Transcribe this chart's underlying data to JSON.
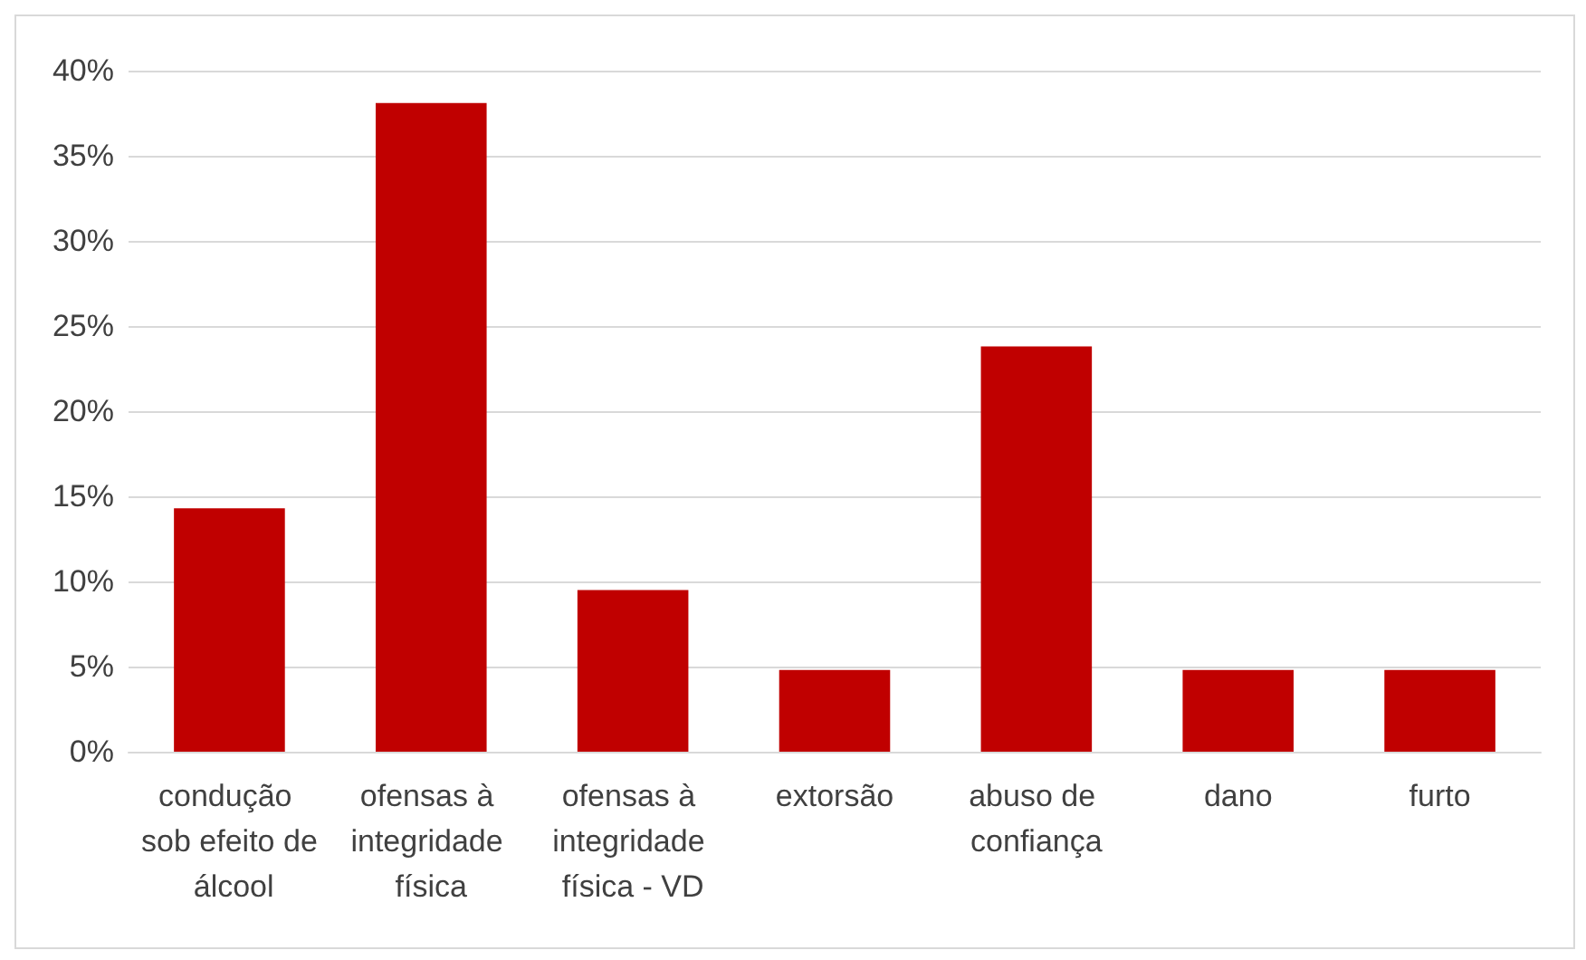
{
  "chart_data": {
    "type": "bar",
    "categories": [
      "condução sob efeito de álcool",
      "ofensas à integridade física",
      "ofensas à integridade física - VD",
      "extorsão",
      "abuso de confiança",
      "dano",
      "furto"
    ],
    "values": [
      14.3,
      38.1,
      9.5,
      4.8,
      23.8,
      4.8,
      4.8
    ],
    "color": "#c00000",
    "ylim": [
      0,
      40
    ],
    "yticks": [
      {
        "value": 0,
        "label": "0%"
      },
      {
        "value": 5,
        "label": "5%"
      },
      {
        "value": 10,
        "label": "10%"
      },
      {
        "value": 15,
        "label": "15%"
      },
      {
        "value": 20,
        "label": "20%"
      },
      {
        "value": 25,
        "label": "25%"
      },
      {
        "value": 30,
        "label": "30%"
      },
      {
        "value": 35,
        "label": "35%"
      },
      {
        "value": 40,
        "label": "40%"
      }
    ],
    "grid": "y"
  }
}
